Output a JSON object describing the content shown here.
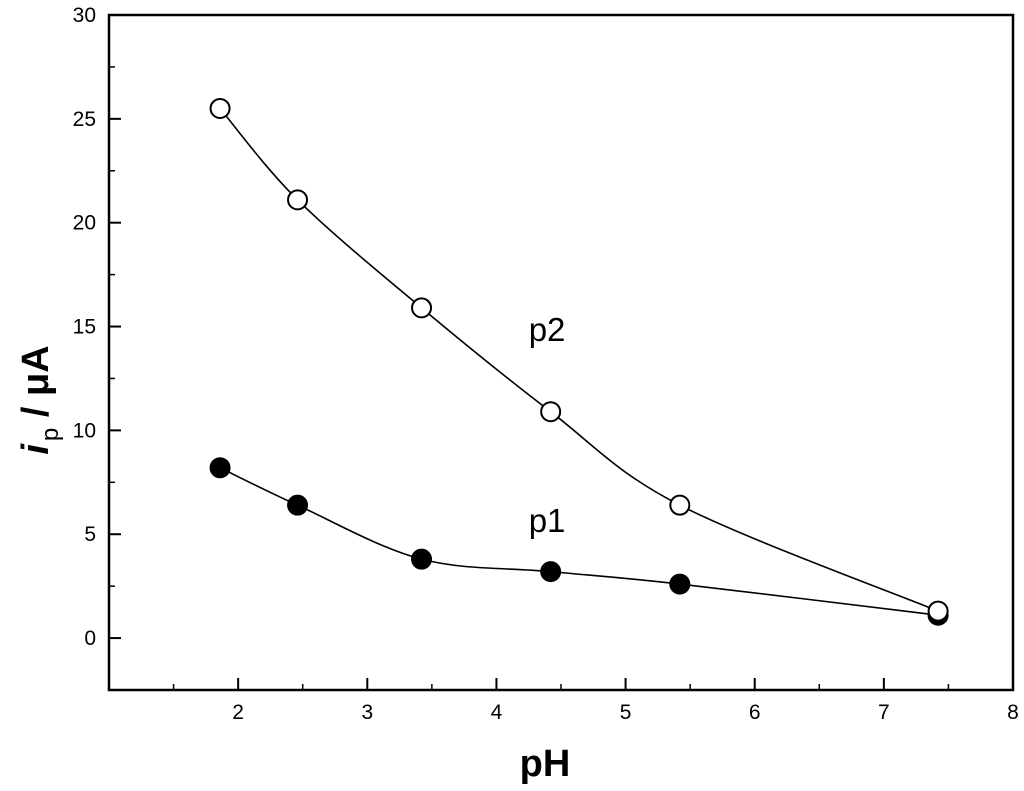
{
  "chart_data": {
    "type": "line",
    "title": "",
    "xlabel": "pH",
    "ylabel": {
      "main": "i",
      "subscript": "p",
      "unit": " / μA"
    },
    "xlim": [
      1.0,
      8.0
    ],
    "ylim": [
      -2.5,
      30
    ],
    "xticks": [
      2,
      3,
      4,
      5,
      6,
      7,
      8
    ],
    "yticks": [
      0,
      5,
      10,
      15,
      20,
      25,
      30
    ],
    "xtick_labels": [
      "2",
      "3",
      "4",
      "5",
      "6",
      "7",
      "8"
    ],
    "ytick_labels": [
      "0",
      "5",
      "10",
      "15",
      "20",
      "25",
      "30"
    ],
    "grid": false,
    "series": [
      {
        "name": "p2",
        "label": "p2",
        "marker": "open-circle",
        "label_at": [
          4.25,
          14.3
        ],
        "x": [
          1.86,
          2.46,
          3.42,
          4.42,
          5.42,
          7.42
        ],
        "y": [
          25.5,
          21.1,
          15.9,
          10.9,
          6.4,
          1.3
        ]
      },
      {
        "name": "p1",
        "label": "p1",
        "marker": "filled-circle",
        "label_at": [
          4.25,
          5.1
        ],
        "x": [
          1.86,
          2.46,
          3.42,
          4.42,
          5.42,
          7.42
        ],
        "y": [
          8.2,
          6.4,
          3.8,
          3.2,
          2.6,
          1.1
        ]
      }
    ]
  }
}
